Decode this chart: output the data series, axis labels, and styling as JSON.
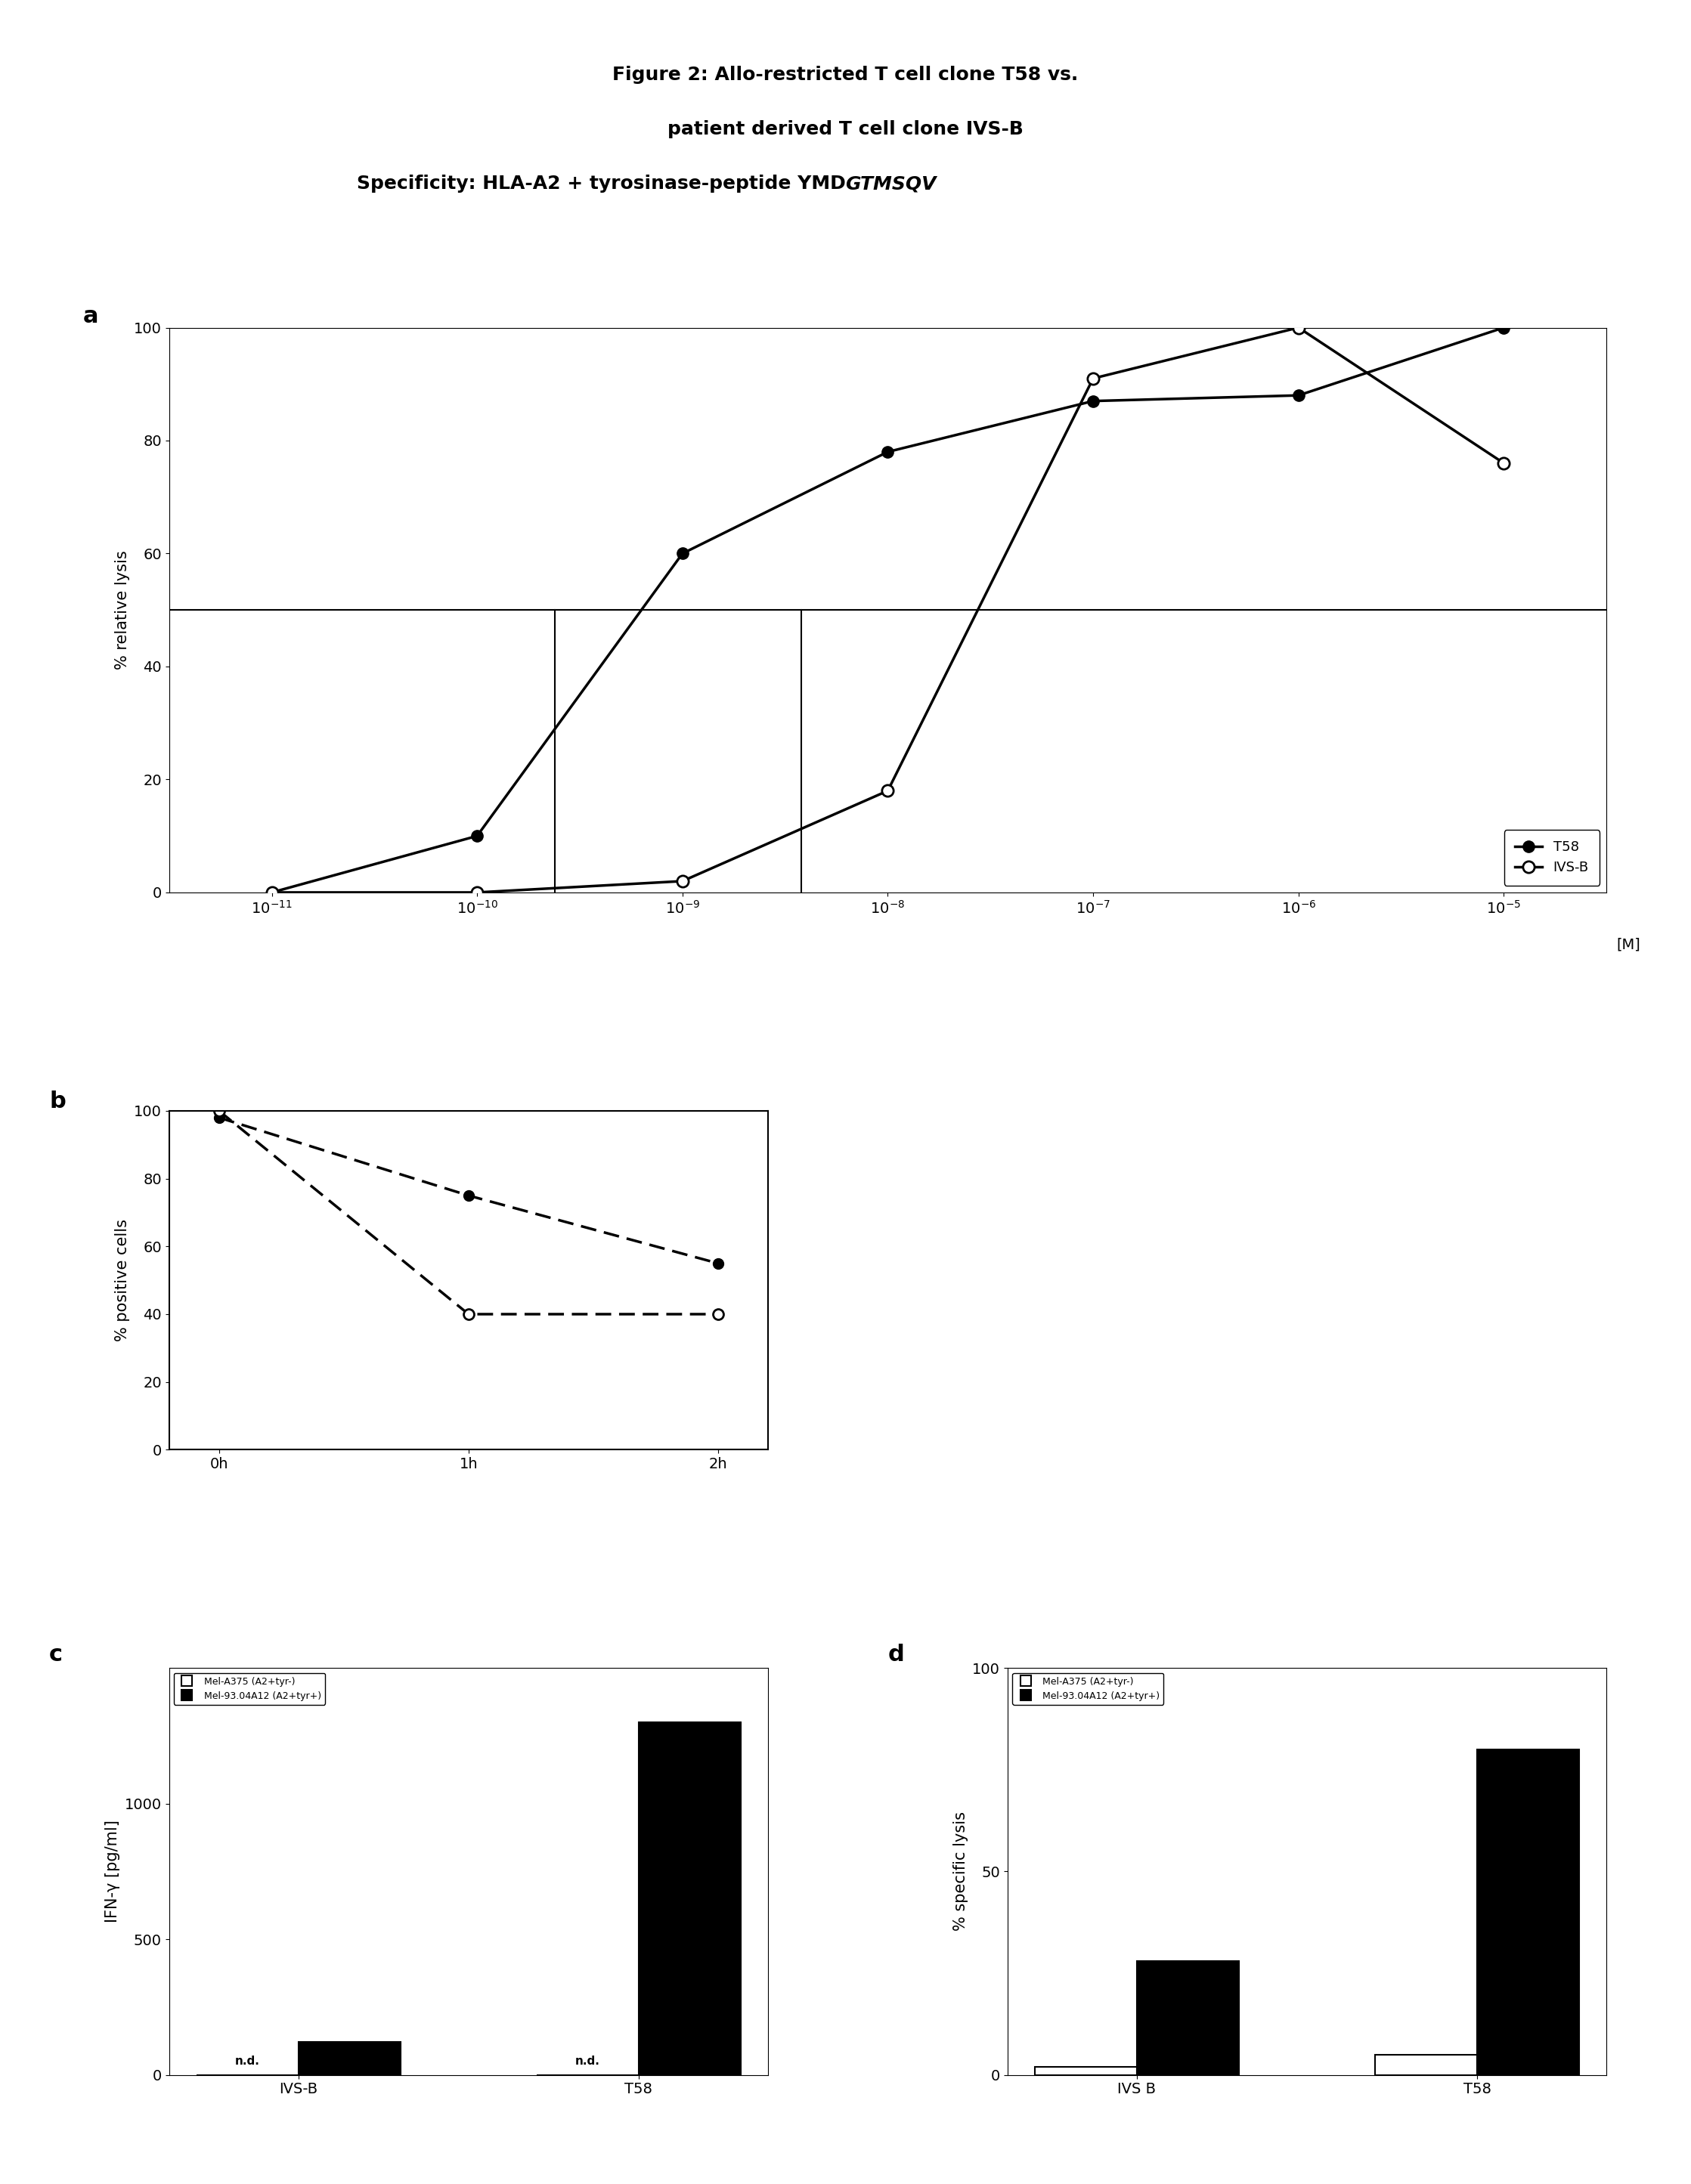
{
  "title_line1": "Figure 2: Allo-restricted T cell clone T58 vs.",
  "title_line2": "patient derived T cell clone IVS-B",
  "title_line3_normal": "Specificity: HLA-A2 + tyrosinase-peptide YMD",
  "title_line3_bold": "GTMSQV",
  "fig_bg": "#ffffff",
  "panel_a": {
    "T58_x": [
      -11,
      -10,
      -9,
      -8,
      -7,
      -6,
      -5
    ],
    "T58_y": [
      0,
      10,
      60,
      78,
      87,
      88,
      100
    ],
    "IVSB_x": [
      -11,
      -10,
      -9,
      -8,
      -7,
      -6,
      -5
    ],
    "IVSB_y": [
      0,
      0,
      2,
      18,
      91,
      100,
      76
    ],
    "ylabel": "% relative lysis",
    "xlabel": "[M]",
    "ylim": [
      0,
      100
    ],
    "yticks": [
      0,
      20,
      40,
      60,
      80,
      100
    ],
    "hline_y": 50,
    "T58_vline_x": -9.62,
    "IVSB_vline_x": -8.42,
    "marker_size": 10
  },
  "panel_b": {
    "x": [
      0,
      1,
      2
    ],
    "xlabels": [
      "0h",
      "1h",
      "2h"
    ],
    "series1_y": [
      98,
      75,
      55
    ],
    "series2_y": [
      100,
      40,
      40
    ],
    "ylabel": "% positive cells",
    "ylim": [
      0,
      100
    ],
    "yticks": [
      0,
      20,
      40,
      60,
      80,
      100
    ]
  },
  "panel_c": {
    "groups": [
      "IVS-B",
      "T58"
    ],
    "bar1_vals": [
      0,
      0
    ],
    "bar2_vals": [
      120,
      1300
    ],
    "ylabel": "IFN-γ [pg/ml]",
    "yticks": [
      0,
      500,
      1000
    ],
    "ylim": [
      0,
      1500
    ],
    "nd_labels": [
      "n.d.",
      "n.d."
    ],
    "legend1": "Mel-A375 (A2+tyr-)",
    "legend2": "Mel-93.04A12 (A2+tyr+)"
  },
  "panel_d": {
    "groups": [
      "IVS B",
      "T58"
    ],
    "bar1_vals": [
      2,
      5
    ],
    "bar2_vals": [
      28,
      80
    ],
    "ylabel": "% specific lysis",
    "yticks": [
      0,
      50,
      100
    ],
    "ylim": [
      0,
      100
    ],
    "legend1": "Mel-A375 (A2+tyr-)",
    "legend2": "Mel-93.04A12 (A2+tyr+)"
  }
}
